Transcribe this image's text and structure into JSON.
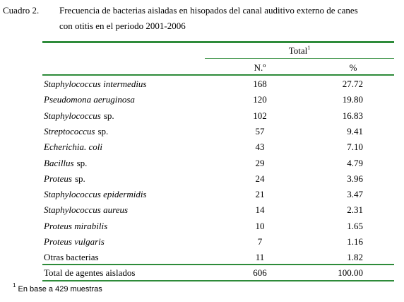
{
  "caption": {
    "label": "Cuadro 2.",
    "text_line1": "Frecuencia de bacterias aisladas en hisopados del canal auditivo externo de canes",
    "text_line2": "con otitis en el periodo 2001-2006"
  },
  "table": {
    "group_header": {
      "text": "Total",
      "note": "1"
    },
    "columns": [
      "N.º",
      "%"
    ],
    "rows": [
      {
        "name": [
          {
            "text": "Staphylococcus intermedius",
            "italic": true
          }
        ],
        "n": "168",
        "pct": "27.72"
      },
      {
        "name": [
          {
            "text": "Pseudomona aeruginosa",
            "italic": true
          }
        ],
        "n": "120",
        "pct": "19.80"
      },
      {
        "name": [
          {
            "text": "Staphylococcus",
            "italic": true
          },
          {
            "text": "sp.",
            "italic": false
          }
        ],
        "n": "102",
        "pct": "16.83"
      },
      {
        "name": [
          {
            "text": "Streptococcus",
            "italic": true
          },
          {
            "text": "sp.",
            "italic": false
          }
        ],
        "n": "57",
        "pct": "9.41"
      },
      {
        "name": [
          {
            "text": "Echerichia. coli",
            "italic": true
          }
        ],
        "n": "43",
        "pct": "7.10"
      },
      {
        "name": [
          {
            "text": "Bacillus",
            "italic": true
          },
          {
            "text": "sp.",
            "italic": false
          }
        ],
        "n": "29",
        "pct": "4.79"
      },
      {
        "name": [
          {
            "text": "Proteus",
            "italic": true
          },
          {
            "text": "sp.",
            "italic": false
          }
        ],
        "n": "24",
        "pct": "3.96"
      },
      {
        "name": [
          {
            "text": "Staphylococcus epidermidis",
            "italic": true
          }
        ],
        "n": "21",
        "pct": "3.47"
      },
      {
        "name": [
          {
            "text": "Staphylococcus aureus",
            "italic": true
          }
        ],
        "n": "14",
        "pct": "2.31"
      },
      {
        "name": [
          {
            "text": "Proteus mirabilis",
            "italic": true
          }
        ],
        "n": "10",
        "pct": "1.65"
      },
      {
        "name": [
          {
            "text": "Proteus vulgaris",
            "italic": true
          }
        ],
        "n": "7",
        "pct": "1.16"
      },
      {
        "name": [
          {
            "text": "Otras bacterias",
            "italic": false
          }
        ],
        "n": "11",
        "pct": "1.82"
      }
    ],
    "total_row": {
      "name": "Total de agentes aislados",
      "n": "606",
      "pct": "100.00"
    }
  },
  "footnote": {
    "mark": "1",
    "text": "En base a 429 muestras"
  }
}
